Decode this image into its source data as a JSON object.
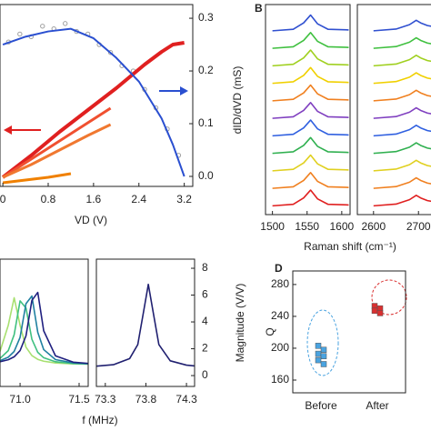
{
  "chart_data": [
    {
      "type": "line",
      "xlabel": "VD (V)",
      "y2label": "dID/dVD (mS)",
      "xlim": [
        -0.05,
        3.35
      ],
      "xticks": [
        0,
        0.8,
        1.6,
        2.4,
        3.2
      ],
      "ylim": [
        0,
        1
      ],
      "y2lim": [
        -0.019,
        0.326
      ],
      "y2ticks": [
        {
          "value": 0,
          "label": "0.0"
        },
        0.1,
        0.2,
        0.3
      ],
      "series": [
        {
          "color": "#a0a0a0",
          "axis": "y2",
          "marker": true,
          "x": [
            0.1,
            0.3,
            0.5,
            0.7,
            0.9,
            1.1,
            1.3,
            1.5,
            1.7,
            1.9,
            2.1,
            2.3,
            2.5,
            2.7,
            2.9,
            3.1
          ],
          "values": [
            0.255,
            0.27,
            0.265,
            0.285,
            0.28,
            0.29,
            0.275,
            0.27,
            0.25,
            0.235,
            0.21,
            0.2,
            0.165,
            0.13,
            0.09,
            0.04
          ]
        },
        {
          "color": "#e02020",
          "width": 4,
          "x": [
            0,
            0.5,
            1,
            1.5,
            2,
            2.5,
            2.8,
            3,
            3.2
          ],
          "values": [
            0.05,
            0.17,
            0.3,
            0.42,
            0.54,
            0.67,
            0.74,
            0.78,
            0.79
          ]
        },
        {
          "color": "#f05030",
          "width": 3,
          "x": [
            0,
            0.5,
            1,
            1.5,
            1.9
          ],
          "values": [
            0.05,
            0.15,
            0.25,
            0.35,
            0.43
          ]
        },
        {
          "color": "#f07830",
          "width": 3,
          "x": [
            0,
            0.5,
            1,
            1.5,
            1.9
          ],
          "values": [
            0.05,
            0.12,
            0.2,
            0.28,
            0.34
          ]
        },
        {
          "color": "#f08000",
          "width": 3,
          "x": [
            0,
            0.4,
            0.8,
            1.2
          ],
          "values": [
            0.02,
            0.035,
            0.05,
            0.07
          ]
        },
        {
          "color": "#2a4fd0",
          "width": 2,
          "axis": "y2",
          "x": [
            0,
            0.4,
            0.8,
            1.2,
            1.6,
            2,
            2.4,
            2.8,
            3,
            3.2
          ],
          "values": [
            0.25,
            0.265,
            0.275,
            0.28,
            0.262,
            0.225,
            0.18,
            0.11,
            0.06,
            0
          ]
        }
      ]
    },
    {
      "type": "line",
      "panel_label": "B",
      "xlabel": "Raman shift (cm⁻¹)",
      "ylim": [
        0,
        12
      ],
      "panels": [
        {
          "xlim": [
            1490,
            1612
          ],
          "xticks": [
            1500,
            1550,
            1600
          ],
          "x": [
            1500,
            1530,
            1545,
            1555,
            1565,
            1580,
            1610
          ],
          "series": [
            {
              "color": "#3050d0",
              "values": [
                10.5,
                10.59,
                10.95,
                11.4,
                10.9,
                10.59,
                10.55
              ]
            },
            {
              "color": "#40c040",
              "values": [
                9.5,
                9.59,
                9.95,
                10.4,
                9.9,
                9.59,
                9.55
              ]
            },
            {
              "color": "#a0d020",
              "values": [
                8.5,
                8.59,
                8.95,
                9.4,
                8.9,
                8.59,
                8.55
              ]
            },
            {
              "color": "#f0d000",
              "values": [
                7.5,
                7.59,
                7.95,
                8.4,
                7.9,
                7.59,
                7.55
              ]
            },
            {
              "color": "#f08020",
              "values": [
                6.5,
                6.59,
                6.95,
                7.4,
                6.9,
                6.59,
                6.55
              ]
            },
            {
              "color": "#8040c0",
              "values": [
                5.5,
                5.59,
                5.95,
                6.4,
                5.9,
                5.59,
                5.55
              ]
            },
            {
              "color": "#3060e0",
              "values": [
                4.5,
                4.59,
                4.95,
                5.4,
                4.9,
                4.59,
                4.55
              ]
            },
            {
              "color": "#30b050",
              "values": [
                3.5,
                3.59,
                3.95,
                4.4,
                3.9,
                3.59,
                3.55
              ]
            },
            {
              "color": "#e0d020",
              "values": [
                2.5,
                2.59,
                2.95,
                3.4,
                2.9,
                2.59,
                2.55
              ]
            },
            {
              "color": "#f08020",
              "values": [
                1.5,
                1.59,
                1.95,
                2.4,
                1.9,
                1.59,
                1.55
              ]
            },
            {
              "color": "#e02020",
              "values": [
                0.5,
                0.59,
                0.95,
                1.4,
                0.9,
                0.59,
                0.55
              ]
            }
          ]
        },
        {
          "xlim": [
            2564,
            2740
          ],
          "xticks": [
            2600,
            2700
          ],
          "x": [
            2600,
            2650,
            2680,
            2695,
            2705,
            2720,
            2740
          ],
          "series": [
            {
              "color": "#3050d0",
              "values": [
                10.5,
                10.6,
                10.85,
                11.1,
                10.95,
                10.8,
                10.7
              ]
            },
            {
              "color": "#40c040",
              "values": [
                9.5,
                9.6,
                9.85,
                10.1,
                9.95,
                9.8,
                9.7
              ]
            },
            {
              "color": "#a0d020",
              "values": [
                8.5,
                8.6,
                8.85,
                9.1,
                8.95,
                8.8,
                8.7
              ]
            },
            {
              "color": "#f0d000",
              "values": [
                7.5,
                7.6,
                7.85,
                8.1,
                7.95,
                7.8,
                7.7
              ]
            },
            {
              "color": "#f08020",
              "values": [
                6.5,
                6.6,
                6.85,
                7.1,
                6.95,
                6.8,
                6.7
              ]
            },
            {
              "color": "#8040c0",
              "values": [
                5.5,
                5.6,
                5.85,
                6.1,
                5.95,
                5.8,
                5.7
              ]
            },
            {
              "color": "#3060e0",
              "values": [
                4.5,
                4.6,
                4.85,
                5.1,
                4.95,
                4.8,
                4.7
              ]
            },
            {
              "color": "#30b050",
              "values": [
                3.5,
                3.6,
                3.85,
                4.1,
                3.95,
                3.8,
                3.7
              ]
            },
            {
              "color": "#e0d020",
              "values": [
                2.5,
                2.6,
                2.85,
                3.1,
                2.95,
                2.8,
                2.7
              ]
            },
            {
              "color": "#f08020",
              "values": [
                1.5,
                1.6,
                1.85,
                2.1,
                1.95,
                1.8,
                1.7
              ]
            },
            {
              "color": "#e02020",
              "values": [
                0.5,
                0.6,
                0.85,
                1.1,
                0.95,
                0.8,
                0.7
              ]
            }
          ]
        }
      ]
    },
    {
      "type": "line",
      "xlabel": "f (MHz)",
      "ylabel": "Magnitude (V/V)",
      "ylim": [
        -0.81,
        8.68
      ],
      "yticks": [
        0,
        2,
        4,
        6,
        8
      ],
      "panels": [
        {
          "xlim": [
            70.83,
            71.577
          ],
          "xticks": [
            {
              "value": 71,
              "label": "71.0"
            },
            71.5
          ],
          "x": [
            70.83,
            70.9,
            70.95,
            71.0,
            71.05,
            71.1,
            71.15,
            71.2,
            71.3,
            71.45,
            71.577
          ],
          "series": [
            {
              "color": "#a8e070",
              "values": [
                1.8,
                3.75,
                5.8,
                3.75,
                2.12,
                1.49,
                1.21,
                1.07,
                0.94,
                0.87,
                0.85
              ]
            },
            {
              "color": "#40c080",
              "values": [
                1.28,
                1.86,
                3.05,
                5.57,
                5.04,
                2.71,
                1.73,
                1.33,
                1.03,
                0.9,
                0.86
              ]
            },
            {
              "color": "#2080a0",
              "values": [
                1.11,
                1.37,
                1.8,
                2.85,
                5.36,
                5.93,
                3.22,
                1.94,
                1.19,
                0.95,
                0.88
              ]
            },
            {
              "color": "#202080",
              "values": [
                1.03,
                1.18,
                1.4,
                1.86,
                2.96,
                5.6,
                6.2,
                3.34,
                1.47,
                1.0,
                0.91
              ]
            }
          ]
        },
        {
          "xlim": [
            73.19,
            74.4
          ],
          "xticks": [
            73.3,
            73.8,
            74.3
          ],
          "x": [
            73.19,
            73.4,
            73.6,
            73.7,
            73.78,
            73.83,
            73.88,
            73.96,
            74.1,
            74.3,
            74.4
          ],
          "series": [
            {
              "color": "#202070",
              "values": [
                0.7,
                0.81,
                1.27,
                2.31,
                5.06,
                6.8,
                5.06,
                2.31,
                1.1,
                0.78,
                0.72
              ]
            }
          ]
        }
      ]
    },
    {
      "type": "scatter",
      "panel_label": "D",
      "ylabel": "Q",
      "categories": [
        "Before",
        "After"
      ],
      "ylim": [
        144,
        297
      ],
      "yticks": [
        160,
        200,
        240,
        280
      ],
      "series": [
        {
          "color": "#4aa3e0",
          "values": [
            203,
            198,
            193,
            190,
            185,
            180
          ]
        },
        {
          "color": "#d93030",
          "values": [
            253,
            250,
            247,
            244
          ]
        }
      ]
    }
  ]
}
